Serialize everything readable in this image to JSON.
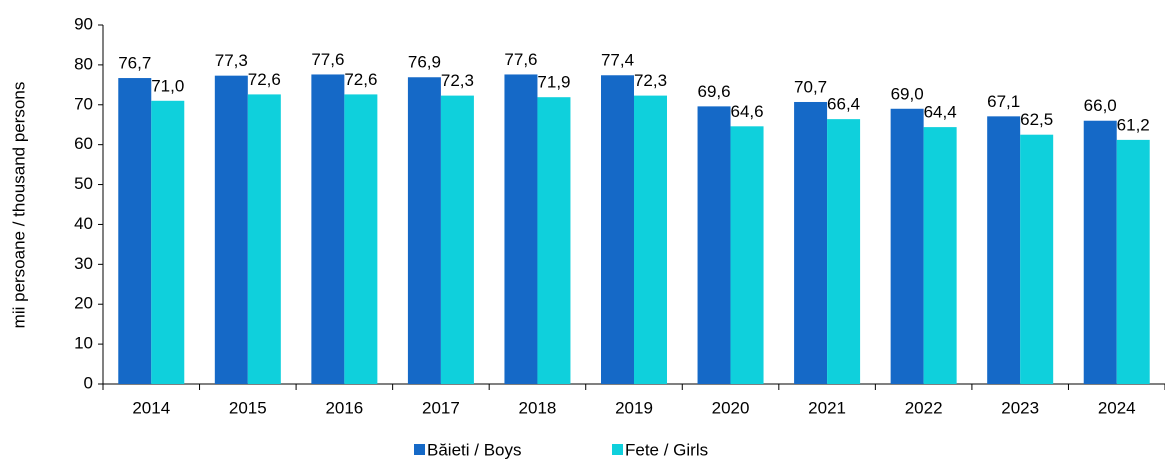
{
  "chart_data": {
    "type": "bar",
    "y_label": "mii  persoane / thousand persons",
    "categories": [
      "2014",
      "2015",
      "2016",
      "2017",
      "2018",
      "2019",
      "2020",
      "2021",
      "2022",
      "2023",
      "2024"
    ],
    "series": [
      {
        "name": "Băieti / Boys",
        "color": "#1569c7",
        "values": [
          76.7,
          77.3,
          77.6,
          76.9,
          77.6,
          77.4,
          69.6,
          70.7,
          69.0,
          67.1,
          66.0
        ],
        "value_labels": [
          "76,7",
          "77,3",
          "77,6",
          "76,9",
          "77,6",
          "77,4",
          "69,6",
          "70,7",
          "69,0",
          "67,1",
          "66,0"
        ]
      },
      {
        "name": "Fete / Girls",
        "color": "#0fd0dc",
        "values": [
          71.0,
          72.6,
          72.6,
          72.3,
          71.9,
          72.3,
          64.6,
          66.4,
          64.4,
          62.5,
          61.2
        ],
        "value_labels": [
          "71,0",
          "72,6",
          "72,6",
          "72,3",
          "71,9",
          "72,3",
          "64,6",
          "66,4",
          "64,4",
          "62,5",
          "61,2"
        ]
      }
    ],
    "ylim": [
      0,
      90
    ],
    "yticks": [
      0,
      10,
      20,
      30,
      40,
      50,
      60,
      70,
      80,
      90
    ],
    "grid": false,
    "legend": "bottom"
  }
}
